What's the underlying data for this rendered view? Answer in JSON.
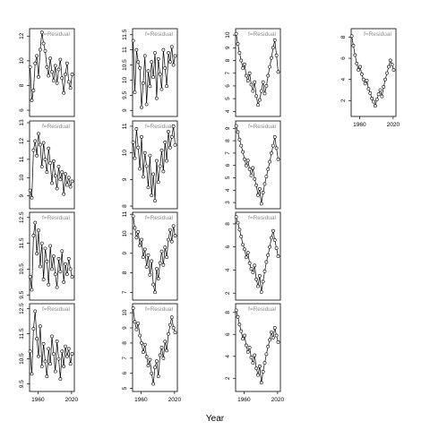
{
  "figure": {
    "xlabel": "Year",
    "strip_label": "f=Residual"
  },
  "chart_data": {
    "type": "line",
    "xlabel": "Year",
    "xlim": [
      1945,
      2025
    ],
    "x_ticks": [
      1960,
      2020
    ],
    "panels": [
      {
        "row": 0,
        "col": 0,
        "ylim": [
          5.5,
          12.6
        ],
        "yticks": [
          6,
          8,
          10,
          12
        ],
        "x_axis": false,
        "x": [
          1946,
          1949,
          1952,
          1955,
          1958,
          1961,
          1964,
          1967,
          1970,
          1973,
          1976,
          1979,
          1982,
          1985,
          1988,
          1991,
          1994,
          1997,
          2000,
          2003,
          2006,
          2009,
          2012,
          2015,
          2018,
          2021
        ],
        "values": [
          9.5,
          6.8,
          7.6,
          9.8,
          10.4,
          8.7,
          10.9,
          12.3,
          11.4,
          10.8,
          9.5,
          8.8,
          10.2,
          9.1,
          8.4,
          9.6,
          8.2,
          9.3,
          10.1,
          8.6,
          7.4,
          8.9,
          9.8,
          8.3,
          7.8,
          8.9
        ]
      },
      {
        "row": 0,
        "col": 1,
        "ylim": [
          8.8,
          11.7
        ],
        "yticks": [
          9.0,
          9.5,
          10.0,
          10.5,
          11.0,
          11.5
        ],
        "x_axis": false,
        "x": [
          1946,
          1949,
          1952,
          1955,
          1958,
          1961,
          1964,
          1967,
          1970,
          1973,
          1976,
          1979,
          1982,
          1985,
          1988,
          1991,
          1994,
          1997,
          2000,
          2003,
          2006,
          2009,
          2012,
          2015,
          2018,
          2021
        ],
        "values": [
          11.3,
          9.6,
          11.0,
          10.6,
          10.4,
          9.1,
          9.9,
          10.8,
          9.2,
          10.3,
          9.8,
          10.6,
          10.1,
          10.9,
          9.4,
          10.7,
          10.2,
          9.7,
          11.0,
          10.4,
          9.8,
          10.9,
          10.6,
          11.1,
          10.5,
          10.8
        ]
      },
      {
        "row": 0,
        "col": 2,
        "ylim": [
          3.6,
          10.5
        ],
        "yticks": [
          4,
          5,
          6,
          7,
          8,
          9,
          10
        ],
        "x_axis": false,
        "x": [
          1946,
          1949,
          1952,
          1955,
          1958,
          1961,
          1964,
          1967,
          1970,
          1973,
          1976,
          1979,
          1982,
          1985,
          1988,
          1991,
          1994,
          1997,
          2000,
          2003,
          2006,
          2009,
          2012,
          2015,
          2018,
          2021
        ],
        "values": [
          10.1,
          9.3,
          8.6,
          8.0,
          7.4,
          7.7,
          6.8,
          6.4,
          7.0,
          6.1,
          5.6,
          6.3,
          5.2,
          4.5,
          4.9,
          5.6,
          6.3,
          5.4,
          6.0,
          6.8,
          7.5,
          8.2,
          9.0,
          9.6,
          8.4,
          7.1
        ]
      },
      {
        "row": 0,
        "col": 3,
        "ylim": [
          0.5,
          8.8
        ],
        "yticks": [
          2,
          4,
          6,
          8
        ],
        "x_axis": true,
        "x": [
          1946,
          1949,
          1952,
          1955,
          1958,
          1961,
          1964,
          1967,
          1970,
          1973,
          1976,
          1979,
          1982,
          1985,
          1988,
          1991,
          1994,
          1997,
          2000,
          2003,
          2006,
          2009,
          2012,
          2015,
          2018,
          2021
        ],
        "values": [
          8.1,
          7.2,
          6.3,
          5.5,
          4.9,
          5.2,
          4.5,
          4.0,
          3.6,
          3.9,
          3.1,
          2.7,
          2.2,
          1.9,
          1.5,
          2.1,
          2.6,
          3.0,
          2.4,
          3.3,
          4.0,
          4.6,
          5.2,
          5.8,
          5.4,
          4.9
        ]
      },
      {
        "row": 1,
        "col": 0,
        "ylim": [
          8.3,
          13.1
        ],
        "yticks": [
          9,
          10,
          11,
          12,
          13
        ],
        "x_axis": false,
        "x": [
          1946,
          1949,
          1952,
          1955,
          1958,
          1961,
          1964,
          1967,
          1970,
          1973,
          1976,
          1979,
          1982,
          1985,
          1988,
          1991,
          1994,
          1997,
          2000,
          2003,
          2006,
          2009,
          2012,
          2015,
          2018,
          2021
        ],
        "values": [
          9.3,
          8.9,
          11.5,
          12.0,
          11.2,
          12.4,
          11.8,
          10.6,
          11.9,
          11.0,
          10.3,
          11.6,
          10.8,
          9.7,
          10.9,
          10.1,
          9.4,
          10.6,
          9.9,
          10.3,
          9.1,
          10.2,
          9.6,
          10.0,
          9.5,
          9.8
        ]
      },
      {
        "row": 1,
        "col": 1,
        "ylim": [
          7.9,
          11.2
        ],
        "yticks": [
          8,
          9,
          10,
          11
        ],
        "x_axis": false,
        "x": [
          1946,
          1949,
          1952,
          1955,
          1958,
          1961,
          1964,
          1967,
          1970,
          1973,
          1976,
          1979,
          1982,
          1985,
          1988,
          1991,
          1994,
          1997,
          2000,
          2003,
          2006,
          2009,
          2012,
          2015,
          2018,
          2021
        ],
        "values": [
          10.4,
          9.8,
          10.9,
          10.2,
          9.4,
          10.6,
          9.1,
          10.0,
          9.5,
          8.7,
          9.9,
          8.4,
          9.2,
          8.2,
          9.7,
          8.9,
          9.5,
          10.1,
          9.3,
          10.4,
          9.7,
          10.8,
          10.2,
          10.6,
          11.0,
          10.3
        ]
      },
      {
        "row": 1,
        "col": 2,
        "ylim": [
          2.5,
          9.6
        ],
        "yticks": [
          3,
          4,
          5,
          6,
          7,
          8,
          9
        ],
        "x_axis": false,
        "x": [
          1946,
          1949,
          1952,
          1955,
          1958,
          1961,
          1964,
          1967,
          1970,
          1973,
          1976,
          1979,
          1982,
          1985,
          1988,
          1991,
          1994,
          1997,
          2000,
          2003,
          2006,
          2009,
          2012,
          2015,
          2018,
          2021
        ],
        "values": [
          9.2,
          8.7,
          8.1,
          7.6,
          7.1,
          6.5,
          6.0,
          6.4,
          5.7,
          5.2,
          5.8,
          4.9,
          4.4,
          3.6,
          4.1,
          2.9,
          3.8,
          4.5,
          5.1,
          5.7,
          6.3,
          7.0,
          7.6,
          8.3,
          7.4,
          6.5
        ]
      },
      {
        "row": 2,
        "col": 0,
        "ylim": [
          9.3,
          12.7
        ],
        "yticks": [
          9.5,
          10.5,
          11.5,
          12.5
        ],
        "x_axis": false,
        "x": [
          1946,
          1949,
          1952,
          1955,
          1958,
          1961,
          1964,
          1967,
          1970,
          1973,
          1976,
          1979,
          1982,
          1985,
          1988,
          1991,
          1994,
          1997,
          2000,
          2003,
          2006,
          2009,
          2012,
          2015,
          2018,
          2021
        ],
        "values": [
          10.2,
          9.7,
          11.8,
          12.3,
          11.1,
          12.0,
          10.6,
          11.5,
          10.1,
          11.3,
          10.8,
          9.9,
          11.4,
          10.5,
          11.0,
          10.3,
          9.8,
          10.9,
          10.4,
          11.2,
          10.0,
          10.7,
          10.3,
          10.9,
          10.5,
          10.2
        ]
      },
      {
        "row": 2,
        "col": 1,
        "ylim": [
          6.6,
          11.1
        ],
        "yticks": [
          7,
          8,
          9,
          10,
          11
        ],
        "x_axis": false,
        "x": [
          1946,
          1949,
          1952,
          1955,
          1958,
          1961,
          1964,
          1967,
          1970,
          1973,
          1976,
          1979,
          1982,
          1985,
          1988,
          1991,
          1994,
          1997,
          2000,
          2003,
          2006,
          2009,
          2012,
          2015,
          2018,
          2021
        ],
        "values": [
          10.9,
          10.3,
          9.8,
          10.1,
          9.4,
          9.7,
          8.8,
          9.2,
          8.3,
          8.9,
          7.9,
          8.6,
          7.4,
          7.0,
          8.2,
          7.7,
          8.5,
          9.1,
          8.4,
          9.3,
          8.8,
          9.7,
          10.2,
          9.6,
          10.4,
          9.9
        ]
      },
      {
        "row": 2,
        "col": 2,
        "ylim": [
          1.4,
          9.0
        ],
        "yticks": [
          2,
          4,
          6,
          8
        ],
        "x_axis": false,
        "x": [
          1946,
          1949,
          1952,
          1955,
          1958,
          1961,
          1964,
          1967,
          1970,
          1973,
          1976,
          1979,
          1982,
          1985,
          1988,
          1991,
          1994,
          1997,
          2000,
          2003,
          2006,
          2009,
          2012,
          2015,
          2018,
          2021
        ],
        "values": [
          8.6,
          8.1,
          7.5,
          6.9,
          6.2,
          5.8,
          5.1,
          5.5,
          4.6,
          4.1,
          3.8,
          4.4,
          3.2,
          2.6,
          3.5,
          2.1,
          3.0,
          3.9,
          4.7,
          5.3,
          6.0,
          6.8,
          7.4,
          6.6,
          5.9,
          5.2
        ]
      },
      {
        "row": 3,
        "col": 0,
        "ylim": [
          9.2,
          12.7
        ],
        "yticks": [
          9.5,
          10.5,
          11.5,
          12.5
        ],
        "x_axis": true,
        "x": [
          1946,
          1949,
          1952,
          1955,
          1958,
          1961,
          1964,
          1967,
          1970,
          1973,
          1976,
          1979,
          1982,
          1985,
          1988,
          1991,
          1994,
          1997,
          2000,
          2003,
          2006,
          2009,
          2012,
          2015,
          2018,
          2021
        ],
        "values": [
          10.8,
          9.9,
          11.7,
          12.4,
          11.3,
          10.6,
          11.8,
          10.2,
          11.1,
          10.4,
          9.8,
          10.9,
          10.3,
          11.4,
          10.7,
          10.0,
          11.2,
          10.5,
          9.7,
          10.8,
          10.2,
          11.0,
          10.6,
          10.9,
          10.3,
          10.7
        ]
      },
      {
        "row": 3,
        "col": 1,
        "ylim": [
          4.8,
          10.6
        ],
        "yticks": [
          5,
          6,
          7,
          8,
          9,
          10
        ],
        "x_axis": true,
        "x": [
          1946,
          1949,
          1952,
          1955,
          1958,
          1961,
          1964,
          1967,
          1970,
          1973,
          1976,
          1979,
          1982,
          1985,
          1988,
          1991,
          1994,
          1997,
          2000,
          2003,
          2006,
          2009,
          2012,
          2015,
          2018,
          2021
        ],
        "values": [
          10.3,
          9.4,
          8.9,
          9.3,
          8.5,
          8.0,
          7.4,
          7.9,
          7.1,
          6.5,
          6.9,
          6.0,
          5.3,
          6.4,
          6.8,
          5.8,
          7.2,
          7.7,
          7.0,
          8.1,
          7.5,
          8.6,
          9.2,
          9.7,
          9.0,
          8.7
        ]
      },
      {
        "row": 3,
        "col": 2,
        "ylim": [
          0.8,
          8.8
        ],
        "yticks": [
          2,
          4,
          6,
          8
        ],
        "x_axis": true,
        "x": [
          1946,
          1949,
          1952,
          1955,
          1958,
          1961,
          1964,
          1967,
          1970,
          1973,
          1976,
          1979,
          1982,
          1985,
          1988,
          1991,
          1994,
          1997,
          2000,
          2003,
          2006,
          2009,
          2012,
          2015,
          2018,
          2021
        ],
        "values": [
          8.2,
          7.6,
          6.9,
          6.3,
          5.6,
          5.9,
          5.0,
          4.4,
          4.8,
          3.9,
          3.4,
          4.1,
          2.9,
          2.3,
          3.1,
          1.6,
          2.6,
          3.4,
          4.2,
          4.9,
          5.5,
          6.2,
          5.7,
          6.6,
          5.9,
          5.3
        ]
      }
    ]
  }
}
